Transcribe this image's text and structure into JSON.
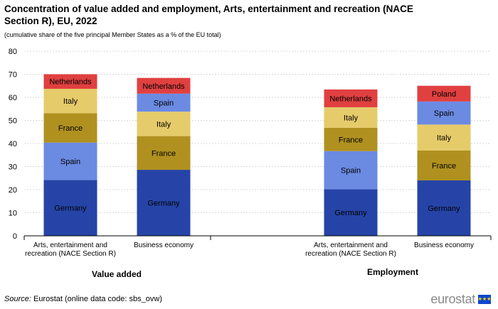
{
  "header": {
    "title": "Concentration of value added and employment, Arts, entertainment and recreation (NACE Section R), EU, 2022",
    "subtitle": "(cumulative  share of the five principal Member States as a % of the EU total)"
  },
  "footer": {
    "source_label": "Source:",
    "source_text": " Eurostat (online data code: sbs_ovw)",
    "logo_text": "eurostat",
    "logo_flag_icon": "eu-flag-icon"
  },
  "colors": {
    "Germany": "#2644a7",
    "Spain": "#6b8ae2",
    "France": "#b09120",
    "Italy": "#e6cb6a",
    "Netherlands": "#e04040",
    "Poland": "#e04040",
    "grid": "#d9d9d9",
    "axis": "#000000"
  },
  "chart_data": {
    "type": "bar",
    "stacked": true,
    "ylim": [
      0,
      80
    ],
    "yticks": [
      0,
      10,
      20,
      30,
      40,
      50,
      60,
      70,
      80
    ],
    "grid": true,
    "groups": [
      {
        "label": "Value added",
        "bars": [
          {
            "category_lines": [
              "Arts, entertainment and",
              "recreation (NACE Section R)"
            ],
            "segments": [
              {
                "country": "Germany",
                "value": 24.2
              },
              {
                "country": "Spain",
                "value": 16.2
              },
              {
                "country": "France",
                "value": 12.7
              },
              {
                "country": "Italy",
                "value": 10.6
              },
              {
                "country": "Netherlands",
                "value": 6.3
              }
            ]
          },
          {
            "category_lines": [
              "Business economy"
            ],
            "segments": [
              {
                "country": "Germany",
                "value": 28.6
              },
              {
                "country": "France",
                "value": 14.6
              },
              {
                "country": "Italy",
                "value": 10.6
              },
              {
                "country": "Spain",
                "value": 7.8
              },
              {
                "country": "Netherlands",
                "value": 6.8
              }
            ]
          }
        ]
      },
      {
        "label": "Employment",
        "bars": [
          {
            "category_lines": [
              "Arts, entertainment and",
              "recreation (NACE Section R)"
            ],
            "segments": [
              {
                "country": "Germany",
                "value": 20.2
              },
              {
                "country": "Spain",
                "value": 16.5
              },
              {
                "country": "France",
                "value": 10.1
              },
              {
                "country": "Italy",
                "value": 8.9
              },
              {
                "country": "Netherlands",
                "value": 7.7
              }
            ]
          },
          {
            "category_lines": [
              "Business economy"
            ],
            "segments": [
              {
                "country": "Germany",
                "value": 24.0
              },
              {
                "country": "France",
                "value": 13.0
              },
              {
                "country": "Italy",
                "value": 11.2
              },
              {
                "country": "Spain",
                "value": 10.0
              },
              {
                "country": "Poland",
                "value": 6.8
              }
            ]
          }
        ]
      }
    ]
  }
}
